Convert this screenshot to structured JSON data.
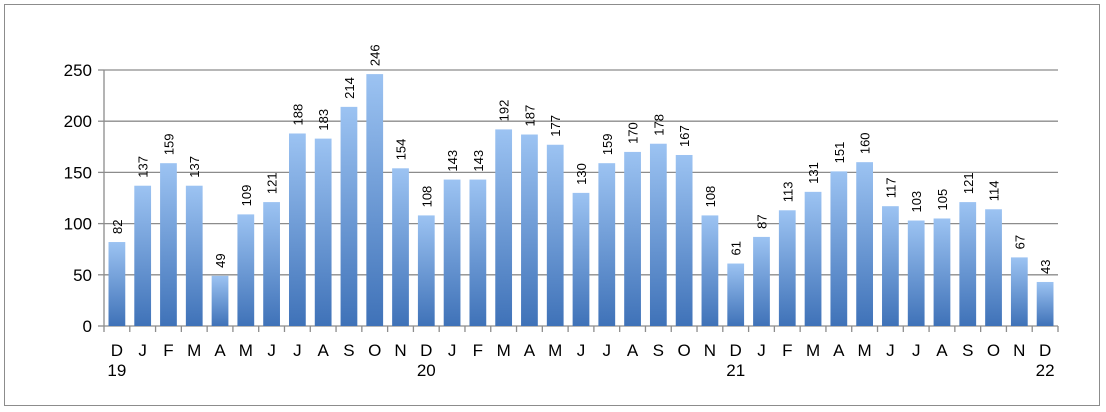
{
  "chart_data": {
    "type": "bar",
    "title": "",
    "xlabel": "",
    "ylabel": "",
    "ylim": [
      0,
      250
    ],
    "yticks": [
      0,
      50,
      100,
      150,
      200,
      250
    ],
    "grid": true,
    "legend": "none",
    "bar_color_top": "#9cc3f2",
    "bar_color_bottom": "#3f72b8",
    "categories": [
      "D",
      "J",
      "F",
      "M",
      "A",
      "M",
      "J",
      "J",
      "A",
      "S",
      "O",
      "N",
      "D",
      "J",
      "F",
      "M",
      "A",
      "M",
      "J",
      "J",
      "A",
      "S",
      "O",
      "N",
      "D",
      "J",
      "F",
      "M",
      "A",
      "M",
      "J",
      "J",
      "A",
      "S",
      "O",
      "N",
      "D"
    ],
    "year_labels": [
      {
        "index": 0,
        "text": "19"
      },
      {
        "index": 12,
        "text": "20"
      },
      {
        "index": 24,
        "text": "21"
      },
      {
        "index": 36,
        "text": "22"
      }
    ],
    "values": [
      82,
      137,
      159,
      137,
      49,
      109,
      121,
      188,
      183,
      214,
      246,
      154,
      108,
      143,
      143,
      192,
      187,
      177,
      130,
      159,
      170,
      178,
      167,
      108,
      61,
      87,
      113,
      131,
      151,
      160,
      117,
      103,
      105,
      121,
      114,
      67,
      43
    ]
  }
}
